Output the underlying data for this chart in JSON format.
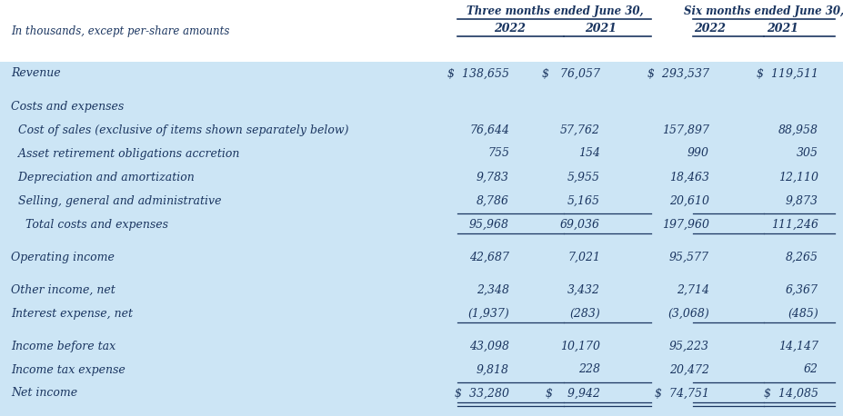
{
  "header_group1": "Three months ended June 30,",
  "header_group2": "Six months ended June 30,",
  "col_headers": [
    "2022",
    "2021",
    "2022",
    "2021"
  ],
  "subtitle": "In thousands, except per-share amounts",
  "bg_color_light": "#cce5f5",
  "bg_color_white": "#ffffff",
  "text_color": "#1a3560",
  "rows": [
    {
      "label": "Revenue",
      "values": [
        "$  138,655",
        "$   76,057",
        "$  293,537",
        "$  119,511"
      ],
      "indent": 0,
      "spacer_above": false,
      "border_top": false,
      "border_bottom": false,
      "double_bottom": false,
      "bg": "light"
    },
    {
      "label": "Costs and expenses",
      "values": [
        "",
        "",
        "",
        ""
      ],
      "indent": 0,
      "spacer_above": true,
      "border_top": false,
      "border_bottom": false,
      "double_bottom": false,
      "bg": "light"
    },
    {
      "label": "  Cost of sales (exclusive of items shown separately below)",
      "values": [
        "76,644",
        "57,762",
        "157,897",
        "88,958"
      ],
      "indent": 1,
      "spacer_above": false,
      "border_top": false,
      "border_bottom": false,
      "double_bottom": false,
      "bg": "light"
    },
    {
      "label": "  Asset retirement obligations accretion",
      "values": [
        "755",
        "154",
        "990",
        "305"
      ],
      "indent": 1,
      "spacer_above": false,
      "border_top": false,
      "border_bottom": false,
      "double_bottom": false,
      "bg": "light"
    },
    {
      "label": "  Depreciation and amortization",
      "values": [
        "9,783",
        "5,955",
        "18,463",
        "12,110"
      ],
      "indent": 1,
      "spacer_above": false,
      "border_top": false,
      "border_bottom": false,
      "double_bottom": false,
      "bg": "light"
    },
    {
      "label": "  Selling, general and administrative",
      "values": [
        "8,786",
        "5,165",
        "20,610",
        "9,873"
      ],
      "indent": 1,
      "spacer_above": false,
      "border_top": false,
      "border_bottom": false,
      "double_bottom": false,
      "bg": "light"
    },
    {
      "label": "    Total costs and expenses",
      "values": [
        "95,968",
        "69,036",
        "197,960",
        "111,246"
      ],
      "indent": 2,
      "spacer_above": false,
      "border_top": true,
      "border_bottom": true,
      "double_bottom": false,
      "bg": "light"
    },
    {
      "label": "Operating income",
      "values": [
        "42,687",
        "7,021",
        "95,577",
        "8,265"
      ],
      "indent": 0,
      "spacer_above": true,
      "border_top": false,
      "border_bottom": false,
      "double_bottom": false,
      "bg": "light"
    },
    {
      "label": "Other income, net",
      "values": [
        "2,348",
        "3,432",
        "2,714",
        "6,367"
      ],
      "indent": 0,
      "spacer_above": true,
      "border_top": false,
      "border_bottom": false,
      "double_bottom": false,
      "bg": "light"
    },
    {
      "label": "Interest expense, net",
      "values": [
        "(1,937)",
        "(283)",
        "(3,068)",
        "(485)"
      ],
      "indent": 0,
      "spacer_above": false,
      "border_top": false,
      "border_bottom": true,
      "double_bottom": false,
      "bg": "light"
    },
    {
      "label": "Income before tax",
      "values": [
        "43,098",
        "10,170",
        "95,223",
        "14,147"
      ],
      "indent": 0,
      "spacer_above": true,
      "border_top": false,
      "border_bottom": false,
      "double_bottom": false,
      "bg": "light"
    },
    {
      "label": "Income tax expense",
      "values": [
        "9,818",
        "228",
        "20,472",
        "62"
      ],
      "indent": 0,
      "spacer_above": false,
      "border_top": false,
      "border_bottom": false,
      "double_bottom": false,
      "bg": "light"
    },
    {
      "label": "Net income",
      "values": [
        "$  33,280",
        "$    9,942",
        "$  74,751",
        "$  14,085"
      ],
      "indent": 0,
      "spacer_above": false,
      "border_top": true,
      "border_bottom": true,
      "double_bottom": true,
      "bg": "light"
    }
  ],
  "fig_width": 9.27,
  "fig_height": 4.58,
  "dpi": 100
}
